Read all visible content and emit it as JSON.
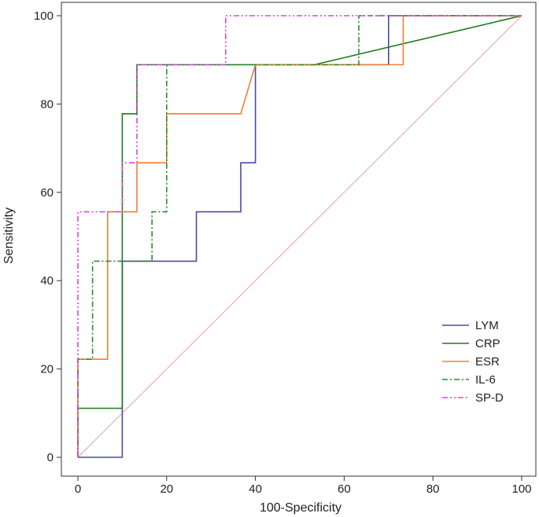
{
  "chart_data": {
    "type": "line",
    "title": "",
    "xlabel": "100-Specificity",
    "ylabel": "Sensitivity",
    "xlim": [
      0,
      100
    ],
    "ylim": [
      0,
      100
    ],
    "xticks": [
      "0",
      "20",
      "40",
      "60",
      "80",
      "100"
    ],
    "yticks": [
      "0",
      "20",
      "40",
      "60",
      "80",
      "100"
    ],
    "grid": false,
    "legend_position": "bottom-right",
    "reference_line": {
      "name": "reference",
      "color": "#e8a0a0",
      "points": [
        [
          0,
          0
        ],
        [
          100,
          100
        ]
      ]
    },
    "series": [
      {
        "name": "LYM",
        "color": "#4a4aa8",
        "dash": "solid",
        "points": [
          [
            0,
            0
          ],
          [
            10,
            0
          ],
          [
            10,
            44.4
          ],
          [
            26.7,
            44.4
          ],
          [
            26.7,
            55.6
          ],
          [
            36.7,
            55.6
          ],
          [
            36.7,
            66.7
          ],
          [
            40,
            66.7
          ],
          [
            40,
            88.9
          ],
          [
            70,
            88.9
          ],
          [
            70,
            100
          ],
          [
            100,
            100
          ]
        ]
      },
      {
        "name": "CRP",
        "color": "#1e7a1e",
        "dash": "solid",
        "points": [
          [
            0,
            0
          ],
          [
            0,
            11.1
          ],
          [
            10,
            11.1
          ],
          [
            10,
            77.8
          ],
          [
            13.3,
            77.8
          ],
          [
            13.3,
            88.9
          ],
          [
            53.3,
            88.9
          ],
          [
            100,
            100
          ]
        ]
      },
      {
        "name": "ESR",
        "color": "#f08030",
        "dash": "solid",
        "points": [
          [
            0,
            0
          ],
          [
            0,
            22.2
          ],
          [
            6.7,
            22.2
          ],
          [
            6.7,
            55.6
          ],
          [
            13.3,
            55.6
          ],
          [
            13.3,
            66.7
          ],
          [
            20,
            66.7
          ],
          [
            20,
            77.8
          ],
          [
            36.7,
            77.8
          ],
          [
            40,
            88.9
          ],
          [
            73.3,
            88.9
          ],
          [
            73.3,
            100
          ],
          [
            100,
            100
          ]
        ]
      },
      {
        "name": "IL-6",
        "color": "#2a8a2a",
        "dash": "dashdot",
        "points": [
          [
            0,
            0
          ],
          [
            0,
            22.2
          ],
          [
            3.3,
            22.2
          ],
          [
            3.3,
            44.4
          ],
          [
            16.7,
            44.4
          ],
          [
            16.7,
            55.6
          ],
          [
            20,
            55.6
          ],
          [
            20,
            88.9
          ],
          [
            63.3,
            88.9
          ],
          [
            63.3,
            100
          ],
          [
            100,
            100
          ]
        ]
      },
      {
        "name": "SP-D",
        "color": "#e040e0",
        "dash": "dashdotdot",
        "points": [
          [
            0,
            0
          ],
          [
            0,
            55.6
          ],
          [
            10,
            55.6
          ],
          [
            10,
            66.7
          ],
          [
            13.3,
            66.7
          ],
          [
            13.3,
            88.9
          ],
          [
            33.3,
            88.9
          ],
          [
            33.3,
            100
          ],
          [
            100,
            100
          ]
        ]
      }
    ]
  }
}
